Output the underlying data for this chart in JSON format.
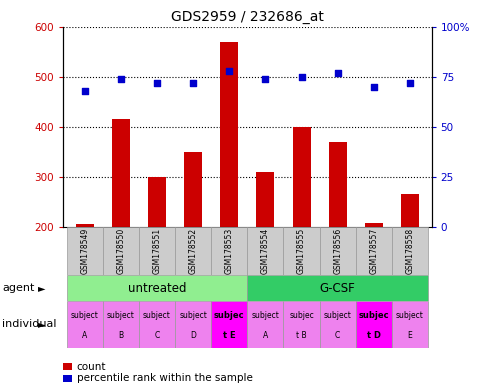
{
  "title": "GDS2959 / 232686_at",
  "samples": [
    "GSM178549",
    "GSM178550",
    "GSM178551",
    "GSM178552",
    "GSM178553",
    "GSM178554",
    "GSM178555",
    "GSM178556",
    "GSM178557",
    "GSM178558"
  ],
  "counts": [
    205,
    415,
    300,
    350,
    570,
    310,
    400,
    370,
    207,
    265
  ],
  "percentile_ranks": [
    68,
    74,
    72,
    72,
    78,
    74,
    75,
    77,
    70,
    72
  ],
  "ylim_left": [
    200,
    600
  ],
  "ylim_right": [
    0,
    100
  ],
  "yticks_left": [
    200,
    300,
    400,
    500,
    600
  ],
  "yticks_right": [
    0,
    25,
    50,
    75,
    100
  ],
  "agent_groups": [
    {
      "label": "untreated",
      "start": 0,
      "end": 5,
      "color": "#90EE90"
    },
    {
      "label": "G-CSF",
      "start": 5,
      "end": 10,
      "color": "#33CC66"
    }
  ],
  "individual_labels": [
    [
      "subject",
      "A"
    ],
    [
      "subject",
      "B"
    ],
    [
      "subject",
      "C"
    ],
    [
      "subject",
      "D"
    ],
    [
      "subjec",
      "t E"
    ],
    [
      "subject",
      "A"
    ],
    [
      "subjec",
      "t B"
    ],
    [
      "subject",
      "C"
    ],
    [
      "subjec",
      "t D"
    ],
    [
      "subject",
      "E"
    ]
  ],
  "individual_highlight": [
    4,
    8
  ],
  "bar_color": "#CC0000",
  "dot_color": "#0000CC",
  "bar_bottom": 200,
  "tick_label_color_left": "#CC0000",
  "tick_label_color_right": "#0000CC",
  "normal_cell_color": "#EE82EE",
  "highlight_cell_color": "#FF00FF",
  "sample_box_color": "#CCCCCC",
  "legend_items": [
    {
      "label": "count",
      "color": "#CC0000"
    },
    {
      "label": "percentile rank within the sample",
      "color": "#0000CC"
    }
  ],
  "agent_label_left": "agent",
  "individual_label_left": "individual"
}
